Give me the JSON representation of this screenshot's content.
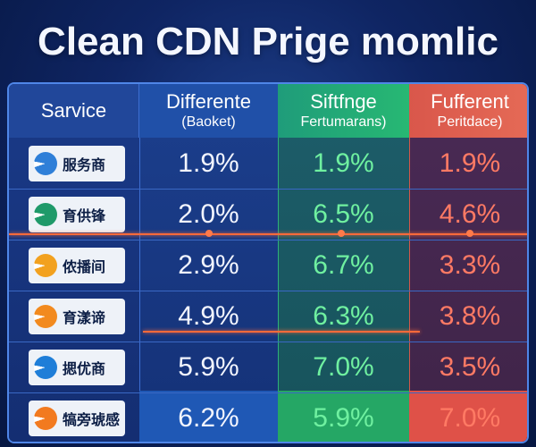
{
  "title": "Clean CDN Prige momlic",
  "headers": {
    "service": "Sarvice",
    "col_a": {
      "line1": "Differente",
      "line2": "(Baoket)"
    },
    "col_b": {
      "line1": "Siftfnge",
      "line2": "Fertumarans)"
    },
    "col_c": {
      "line1": "Fufferent",
      "line2": "Peritdace)"
    }
  },
  "rows": [
    {
      "service": "服务商",
      "logo_color": "#2f7fd8",
      "a": "1.9%",
      "b": "1.9%",
      "c": "1.9%"
    },
    {
      "service": "育供锋",
      "logo_color": "#1f9a6a",
      "a": "2.0%",
      "b": "6.5%",
      "c": "4.6%"
    },
    {
      "service": "侬播间",
      "logo_color": "#f2a11f",
      "a": "2.9%",
      "b": "6.7%",
      "c": "3.3%"
    },
    {
      "service": "育漾谛",
      "logo_color": "#f28a1f",
      "a": "4.9%",
      "b": "6.3%",
      "c": "3.8%"
    },
    {
      "service": "揌优商",
      "logo_color": "#1f7ed8",
      "a": "5.9%",
      "b": "7.0%",
      "c": "3.5%"
    },
    {
      "service": "犒旁琥感",
      "logo_color": "#f27a1f",
      "a": "6.2%",
      "b": "5.9%",
      "c": "7.0%"
    }
  ],
  "colors": {
    "accent_green": "#6ff0a0",
    "accent_red": "#ff7a64",
    "highlight_line": "#ff6a3a"
  }
}
